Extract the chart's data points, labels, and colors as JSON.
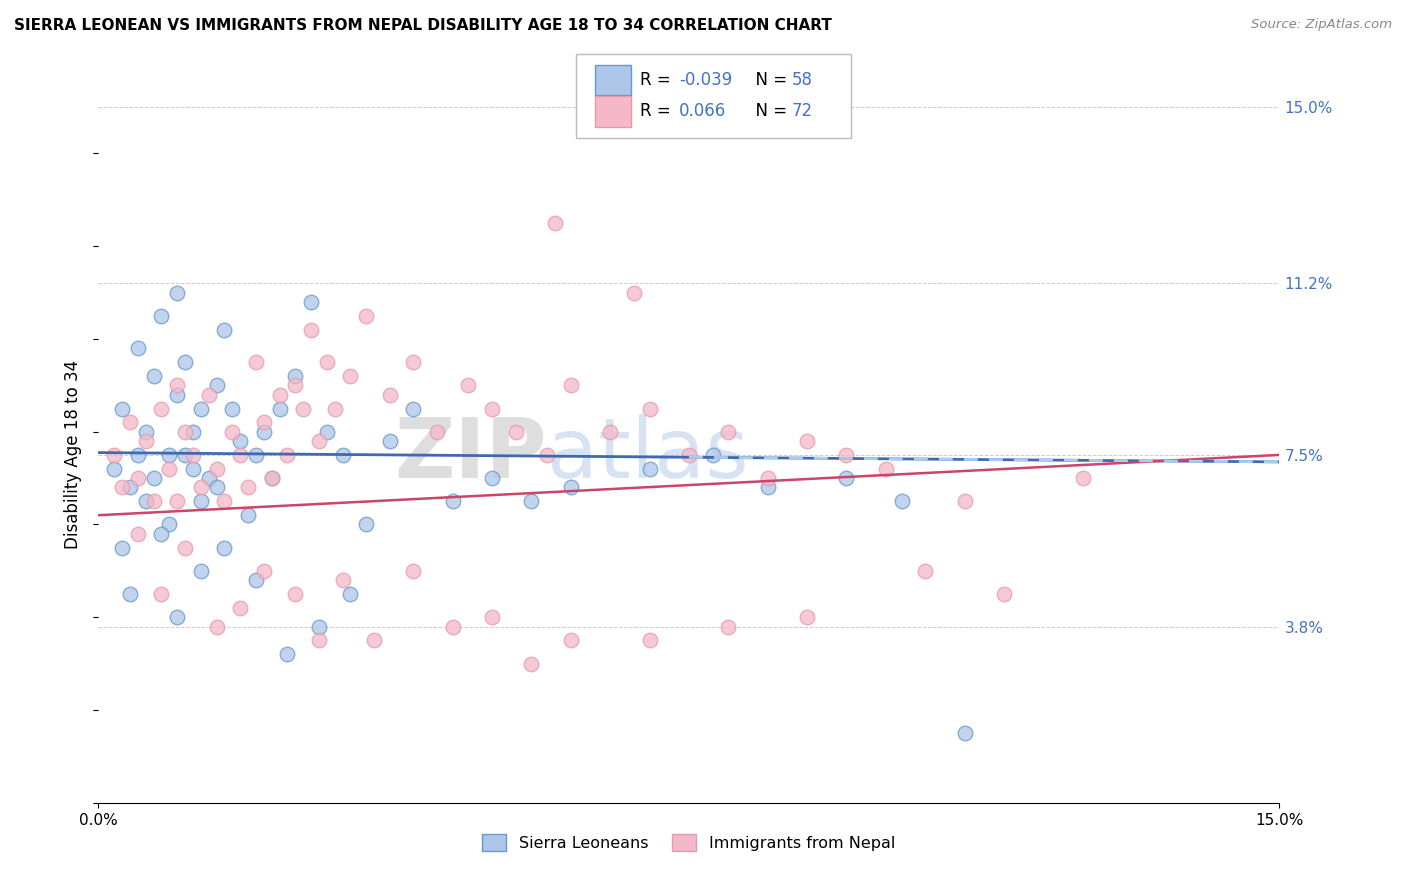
{
  "title": "SIERRA LEONEAN VS IMMIGRANTS FROM NEPAL DISABILITY AGE 18 TO 34 CORRELATION CHART",
  "source": "Source: ZipAtlas.com",
  "ylabel": "Disability Age 18 to 34",
  "xlim": [
    0.0,
    15.0
  ],
  "ylim": [
    0.0,
    15.0
  ],
  "x_tick_labels": [
    "0.0%",
    "15.0%"
  ],
  "x_tick_positions": [
    0.0,
    15.0
  ],
  "y_tick_labels": [
    "3.8%",
    "7.5%",
    "11.2%",
    "15.0%"
  ],
  "y_tick_positions": [
    3.8,
    7.5,
    11.2,
    15.0
  ],
  "color_blue": "#aec6e8",
  "color_pink": "#f4b8ca",
  "color_blue_edge": "#6699cc",
  "color_pink_edge": "#e899aa",
  "color_blue_line": "#4169b0",
  "color_pink_line": "#cc4466",
  "label1": "Sierra Leoneans",
  "label2": "Immigrants from Nepal",
  "blue_line_x0": 0.0,
  "blue_line_y0": 7.55,
  "blue_line_x1": 15.0,
  "blue_line_y1": 7.35,
  "blue_dashed_x0": 7.5,
  "blue_dashed_x1": 15.0,
  "pink_line_x0": 0.0,
  "pink_line_y0": 6.2,
  "pink_line_x1": 15.0,
  "pink_line_y1": 7.5,
  "blue_scatter_x": [
    0.2,
    0.3,
    0.4,
    0.5,
    0.5,
    0.6,
    0.6,
    0.7,
    0.7,
    0.8,
    0.9,
    0.9,
    1.0,
    1.0,
    1.1,
    1.1,
    1.2,
    1.2,
    1.3,
    1.3,
    1.4,
    1.5,
    1.5,
    1.6,
    1.7,
    1.8,
    1.9,
    2.0,
    2.1,
    2.2,
    2.3,
    2.5,
    2.7,
    2.9,
    3.1,
    3.4,
    3.7,
    4.0,
    4.5,
    5.0,
    5.5,
    6.0,
    7.0,
    7.8,
    8.5,
    9.5,
    10.2,
    11.0,
    0.3,
    0.4,
    0.8,
    1.0,
    1.3,
    1.6,
    2.0,
    2.4,
    2.8,
    3.2
  ],
  "blue_scatter_y": [
    7.2,
    8.5,
    6.8,
    9.8,
    7.5,
    6.5,
    8.0,
    7.0,
    9.2,
    10.5,
    7.5,
    6.0,
    8.8,
    11.0,
    7.5,
    9.5,
    8.0,
    7.2,
    6.5,
    8.5,
    7.0,
    9.0,
    6.8,
    10.2,
    8.5,
    7.8,
    6.2,
    7.5,
    8.0,
    7.0,
    8.5,
    9.2,
    10.8,
    8.0,
    7.5,
    6.0,
    7.8,
    8.5,
    6.5,
    7.0,
    6.5,
    6.8,
    7.2,
    7.5,
    6.8,
    7.0,
    6.5,
    1.5,
    5.5,
    4.5,
    5.8,
    4.0,
    5.0,
    5.5,
    4.8,
    3.2,
    3.8,
    4.5
  ],
  "pink_scatter_x": [
    0.2,
    0.3,
    0.4,
    0.5,
    0.6,
    0.7,
    0.8,
    0.9,
    1.0,
    1.0,
    1.1,
    1.2,
    1.3,
    1.4,
    1.5,
    1.6,
    1.7,
    1.8,
    1.9,
    2.0,
    2.1,
    2.2,
    2.3,
    2.4,
    2.5,
    2.6,
    2.7,
    2.8,
    2.9,
    3.0,
    3.2,
    3.4,
    3.7,
    4.0,
    4.3,
    4.7,
    5.0,
    5.3,
    5.7,
    6.0,
    6.5,
    7.0,
    7.5,
    8.0,
    8.5,
    9.0,
    9.5,
    10.0,
    11.0,
    12.5,
    0.5,
    0.8,
    1.1,
    1.5,
    1.8,
    2.1,
    2.5,
    2.8,
    3.1,
    3.5,
    4.0,
    4.5,
    5.0,
    5.5,
    6.0,
    7.0,
    8.0,
    9.0,
    10.5,
    11.5,
    5.8,
    6.8
  ],
  "pink_scatter_y": [
    7.5,
    6.8,
    8.2,
    7.0,
    7.8,
    6.5,
    8.5,
    7.2,
    9.0,
    6.5,
    8.0,
    7.5,
    6.8,
    8.8,
    7.2,
    6.5,
    8.0,
    7.5,
    6.8,
    9.5,
    8.2,
    7.0,
    8.8,
    7.5,
    9.0,
    8.5,
    10.2,
    7.8,
    9.5,
    8.5,
    9.2,
    10.5,
    8.8,
    9.5,
    8.0,
    9.0,
    8.5,
    8.0,
    7.5,
    9.0,
    8.0,
    8.5,
    7.5,
    8.0,
    7.0,
    7.8,
    7.5,
    7.2,
    6.5,
    7.0,
    5.8,
    4.5,
    5.5,
    3.8,
    4.2,
    5.0,
    4.5,
    3.5,
    4.8,
    3.5,
    5.0,
    3.8,
    4.0,
    3.0,
    3.5,
    3.5,
    3.8,
    4.0,
    5.0,
    4.5,
    12.5,
    11.0
  ]
}
